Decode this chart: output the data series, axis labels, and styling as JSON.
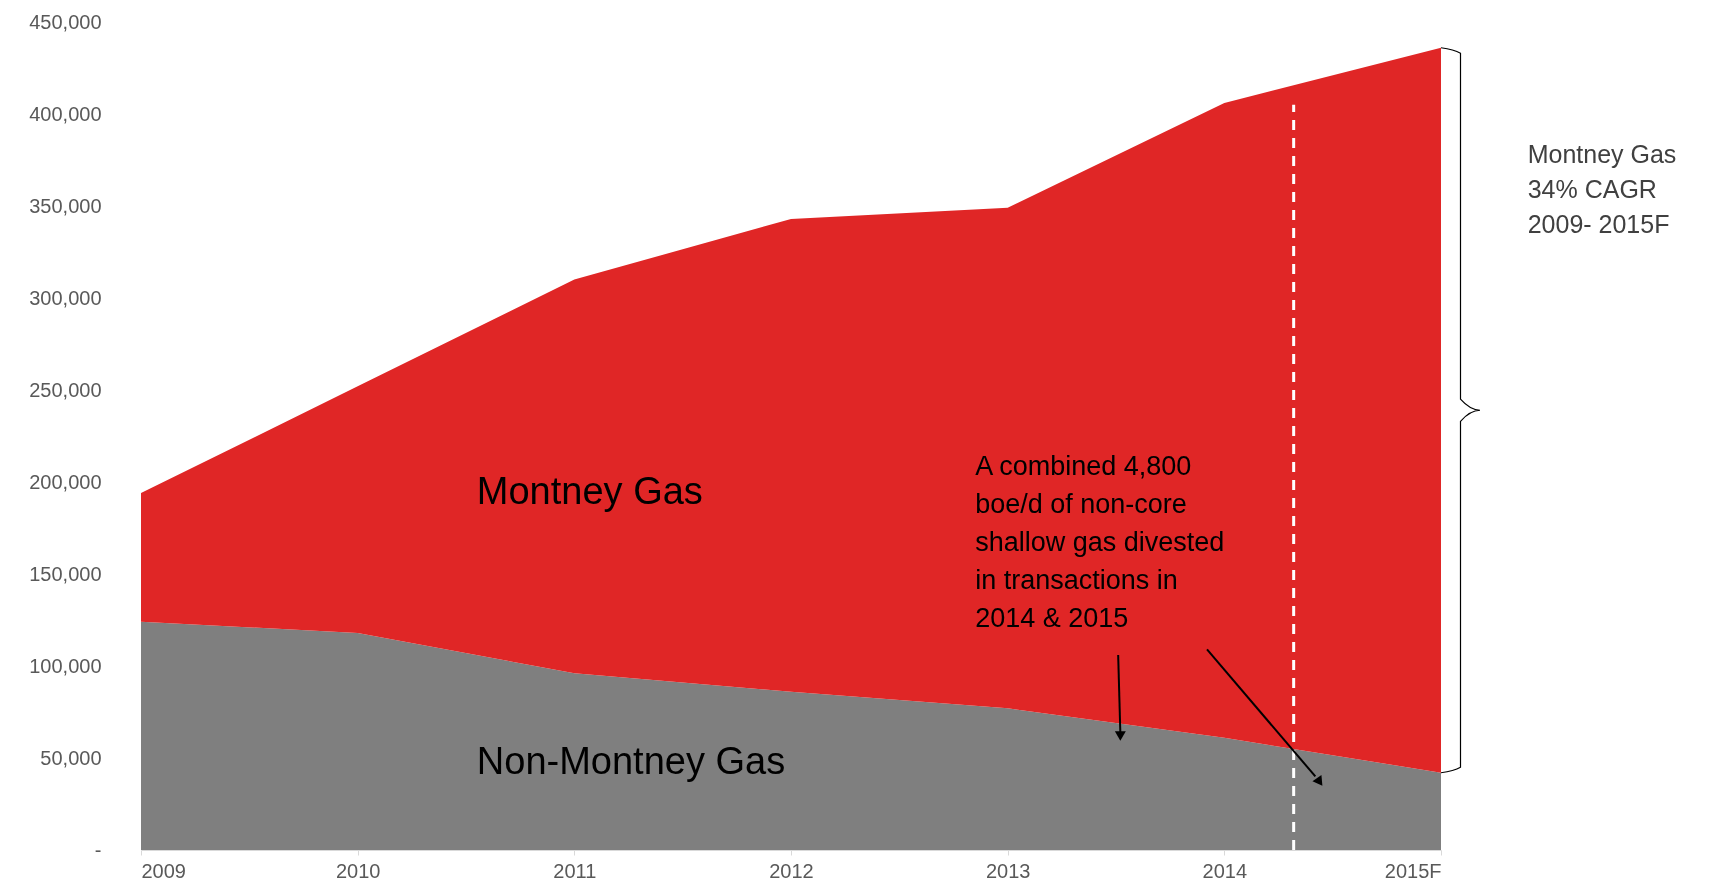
{
  "chart_data": {
    "type": "area",
    "stacked": true,
    "x": [
      2009,
      2010,
      2011,
      2012,
      2013,
      2014,
      2015
    ],
    "xlim": [
      2009,
      2015
    ],
    "xticks": [
      2009,
      2010,
      2011,
      2012,
      2013,
      2014,
      {
        "value": 2015,
        "label": "2015F"
      }
    ],
    "ylim": [
      0,
      450000
    ],
    "yticks": [
      {
        "value": 0,
        "label": "-"
      },
      {
        "value": 50000,
        "label": "50,000"
      },
      {
        "value": 100000,
        "label": "100,000"
      },
      {
        "value": 150000,
        "label": "150,000"
      },
      {
        "value": 200000,
        "label": "200,000"
      },
      {
        "value": 250000,
        "label": "250,000"
      },
      {
        "value": 300000,
        "label": "300,000"
      },
      {
        "value": 350000,
        "label": "350,000"
      },
      {
        "value": 400000,
        "label": "400,000"
      },
      {
        "value": 450000,
        "label": "450,000"
      }
    ],
    "series": [
      {
        "name": "Non-Montney Gas",
        "color": "#7f7f7f",
        "values": [
          124000,
          118000,
          96000,
          86000,
          77000,
          61000,
          42000
        ]
      },
      {
        "name": "Montney Gas",
        "color": "#e02626",
        "values": [
          70000,
          134000,
          214000,
          257000,
          272000,
          345000,
          394000
        ]
      }
    ],
    "ref_lines": [
      {
        "axis": "x",
        "value": 2014.32,
        "color": "#ffffff",
        "line_style": "dashed"
      }
    ],
    "annotations": [
      "A combined 4,800\nboe/d of non-core\nshallow gas divested\nin transactions in\n2014 & 2015",
      "Montney Gas\n34% CAGR\n2009- 2015F"
    ],
    "grid": false
  }
}
